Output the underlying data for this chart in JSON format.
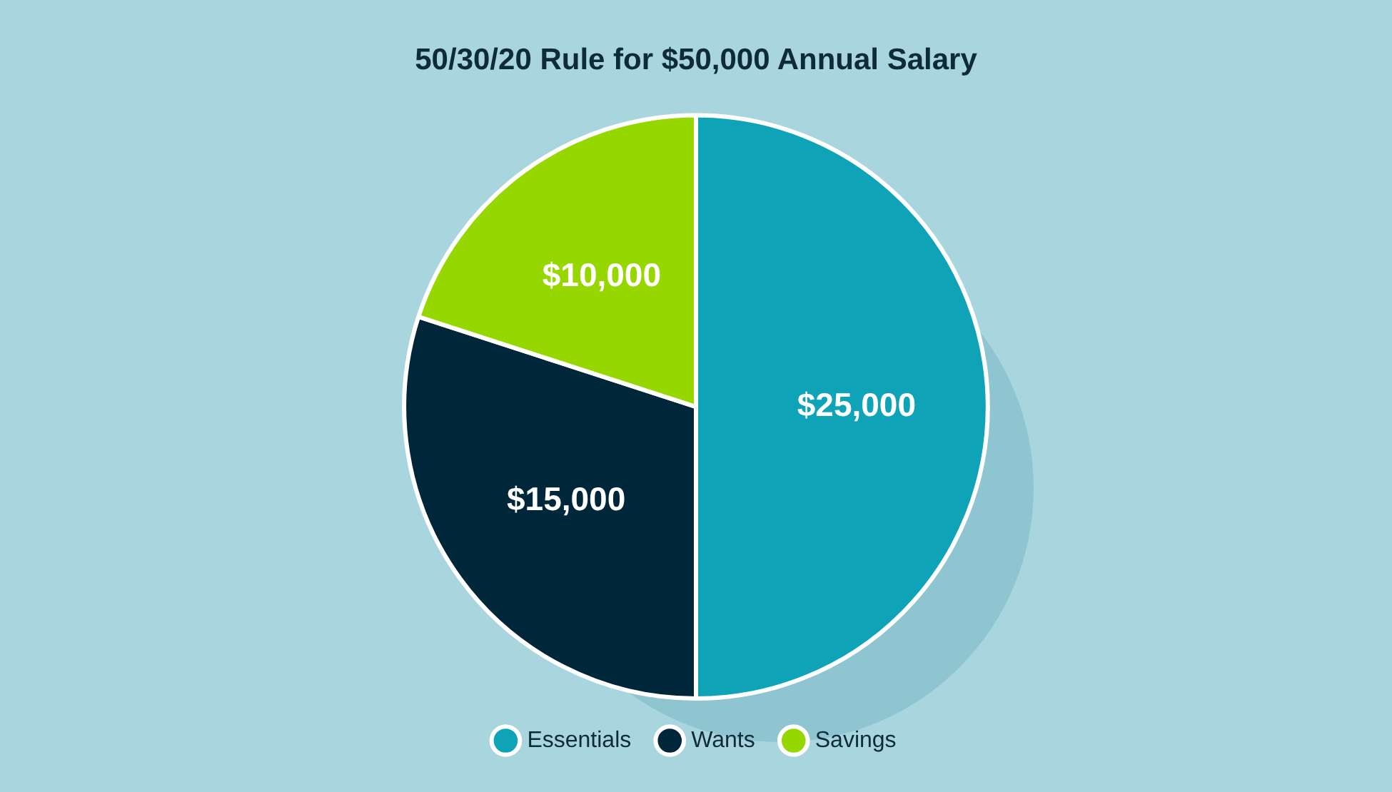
{
  "chart_data": {
    "type": "pie",
    "title": "50/30/20 Rule for $50,000 Annual Salary",
    "categories": [
      "Essentials",
      "Wants",
      "Savings"
    ],
    "values": [
      25000,
      15000,
      10000
    ],
    "colors": [
      "#0fa3b8",
      "#00263a",
      "#97d700"
    ],
    "value_labels": [
      "$25,000",
      "$15,000",
      "$10,000"
    ],
    "legend": "bottom"
  }
}
